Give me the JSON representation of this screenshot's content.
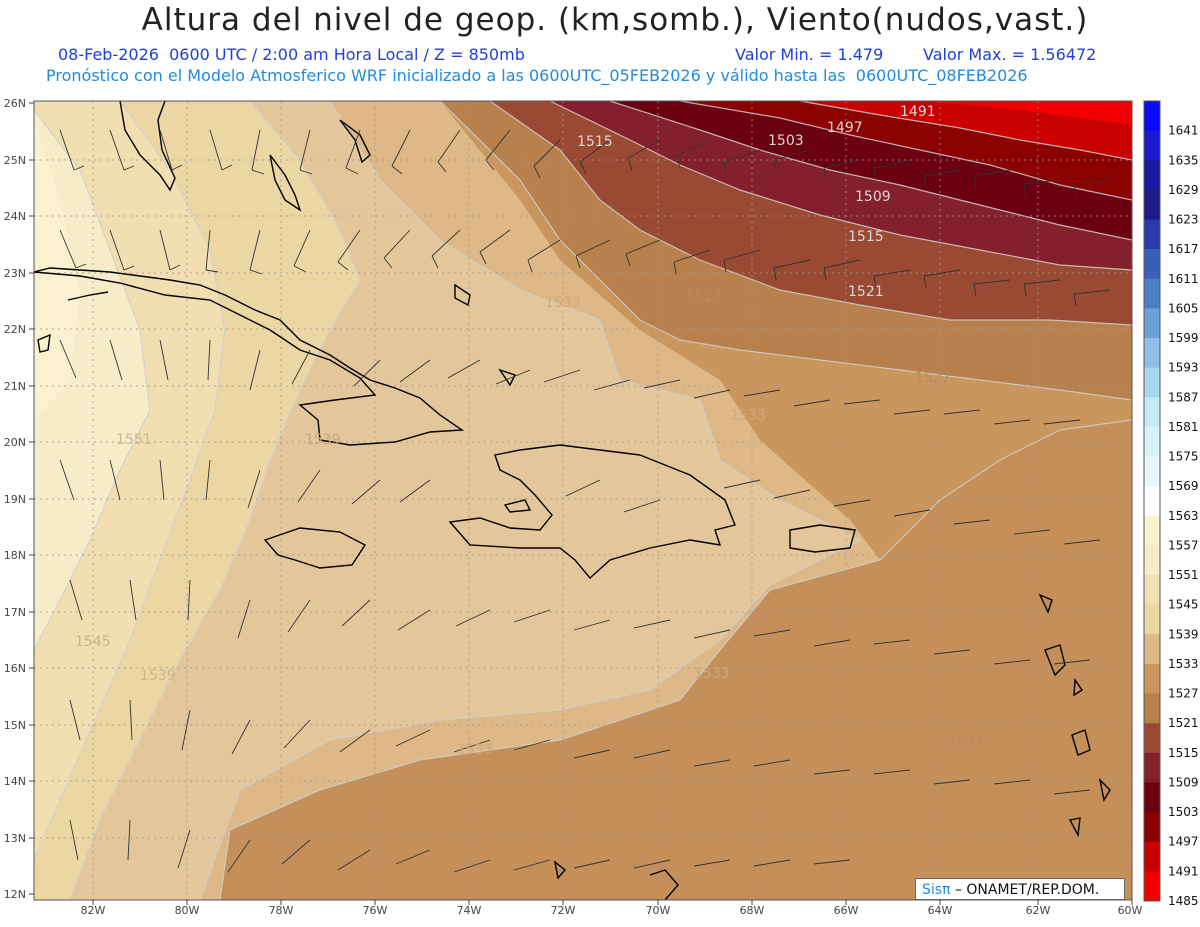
{
  "header": {
    "title": "Altura del nivel de geop. (km,somb.), Viento(nudos,vast.)",
    "date_line": "08-Feb-2026  0600 UTC / 2:00 am Hora Local / Z = 850mb",
    "min_label": "Valor Min. = 1.479",
    "max_label": "Valor Max. = 1.56472",
    "model_line": "Pronóstico con el Modelo Atmosferico WRF inicializado a las 0600UTC_05FEB2026 y válido hasta las  0600UTC_08FEB2026"
  },
  "map": {
    "lat_labels": [
      "26N",
      "25N",
      "24N",
      "23N",
      "22N",
      "21N",
      "20N",
      "19N",
      "18N",
      "17N",
      "16N",
      "15N",
      "14N",
      "13N",
      "12N"
    ],
    "lon_labels": [
      "82W",
      "80W",
      "78W",
      "76W",
      "74W",
      "72W",
      "70W",
      "68W",
      "66W",
      "64W",
      "62W",
      "60W"
    ],
    "contour_labels": [
      "1491",
      "1497",
      "1503",
      "1509",
      "1515",
      "1515",
      "1521",
      "1527",
      "1527",
      "1527",
      "1533",
      "1533",
      "1533",
      "1533",
      "1539",
      "1539",
      "1545",
      "1551"
    ]
  },
  "colorbar": {
    "levels": [
      "1641",
      "1635",
      "1629",
      "1623",
      "1617",
      "1611",
      "1605",
      "1599",
      "1593",
      "1587",
      "1581",
      "1575",
      "1569",
      "1563",
      "1557",
      "1551",
      "1545",
      "1539",
      "1533",
      "1527",
      "1521",
      "1515",
      "1509",
      "1503",
      "1497",
      "1491",
      "1485"
    ],
    "colors": [
      "#0a0aff",
      "#1a1ad0",
      "#1a1aa0",
      "#1c1c88",
      "#2a3aa8",
      "#3a5fb8",
      "#4a7fc6",
      "#6c9fd6",
      "#8fbfe6",
      "#a8d8ee",
      "#c4eaf6",
      "#d8f2fa",
      "#e6f7fc",
      "#ffffff",
      "#faf1cf",
      "#f7ecc8",
      "#f1dfb1",
      "#ecd6a4",
      "#deb887",
      "#c9965e",
      "#b8804d",
      "#9a4a32",
      "#84202c",
      "#6a0010",
      "#8b0000",
      "#c80000",
      "#f00000"
    ]
  },
  "credit": {
    "brand": "Sisπ",
    "text": " – ONAMET/REP.DOM."
  }
}
